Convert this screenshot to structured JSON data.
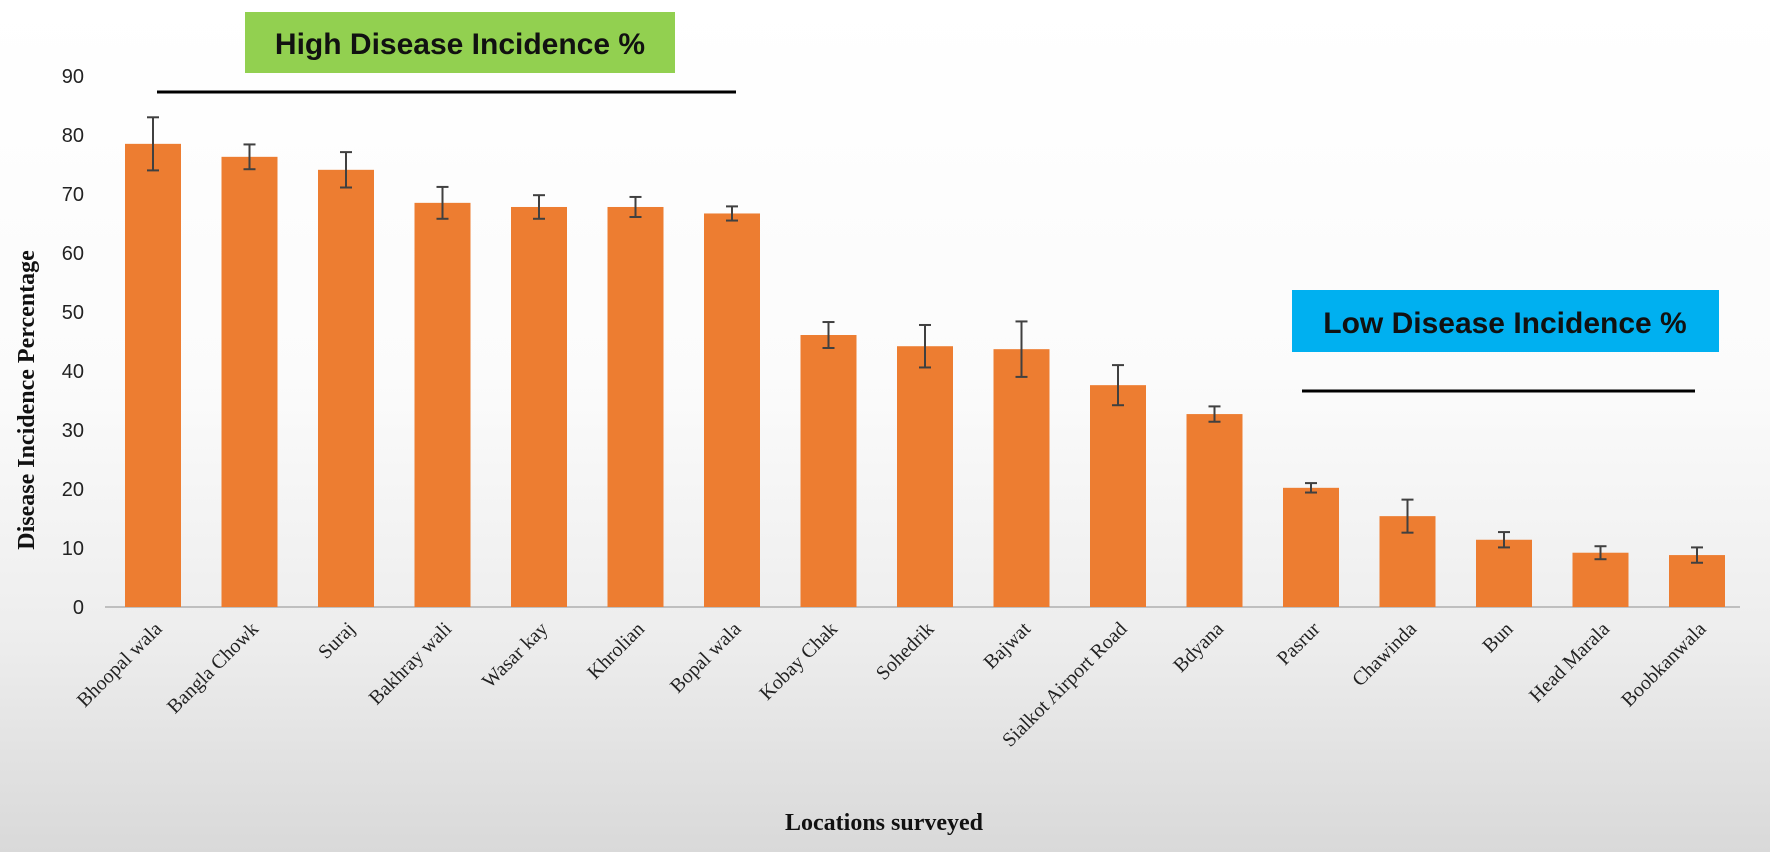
{
  "chart_data": {
    "type": "bar",
    "categories": [
      "Bhoopal wala",
      "Bangla Chowk",
      "Suraj",
      "Bakhray wali",
      "Wasar kay",
      "Khrolian",
      "Bopal wala",
      "Kobay Chak",
      "Sohedrik",
      "Bajwat",
      "Sialkot Airport Road",
      "Bdyana",
      "Pasrur",
      "Chawinda",
      "Bun",
      "Head Marala",
      "Boobkanwala"
    ],
    "values": [
      78.5,
      76.3,
      74.1,
      68.5,
      67.8,
      67.8,
      66.7,
      46.1,
      44.2,
      43.7,
      37.6,
      32.7,
      20.2,
      15.4,
      11.4,
      9.2,
      8.8
    ],
    "errors": [
      4.5,
      2.1,
      3.0,
      2.7,
      2.0,
      1.7,
      1.2,
      2.2,
      3.6,
      4.7,
      3.4,
      1.3,
      0.8,
      2.8,
      1.3,
      1.1,
      1.3
    ],
    "xlabel": "Locations surveyed",
    "ylabel": "Disease  Incidence  Percentage",
    "ylim": [
      0,
      90
    ],
    "yticks": [
      0,
      10,
      20,
      30,
      40,
      50,
      60,
      70,
      80,
      90
    ],
    "grid": false,
    "annotations": {
      "high": {
        "text": "High Disease Incidence %",
        "color": "#92d050"
      },
      "low": {
        "text": "Low Disease Incidence %",
        "color": "#00b0f0"
      }
    },
    "colors": {
      "bar": "#ed7d31",
      "error": "#404040",
      "axis": "#bfbfbf"
    }
  }
}
